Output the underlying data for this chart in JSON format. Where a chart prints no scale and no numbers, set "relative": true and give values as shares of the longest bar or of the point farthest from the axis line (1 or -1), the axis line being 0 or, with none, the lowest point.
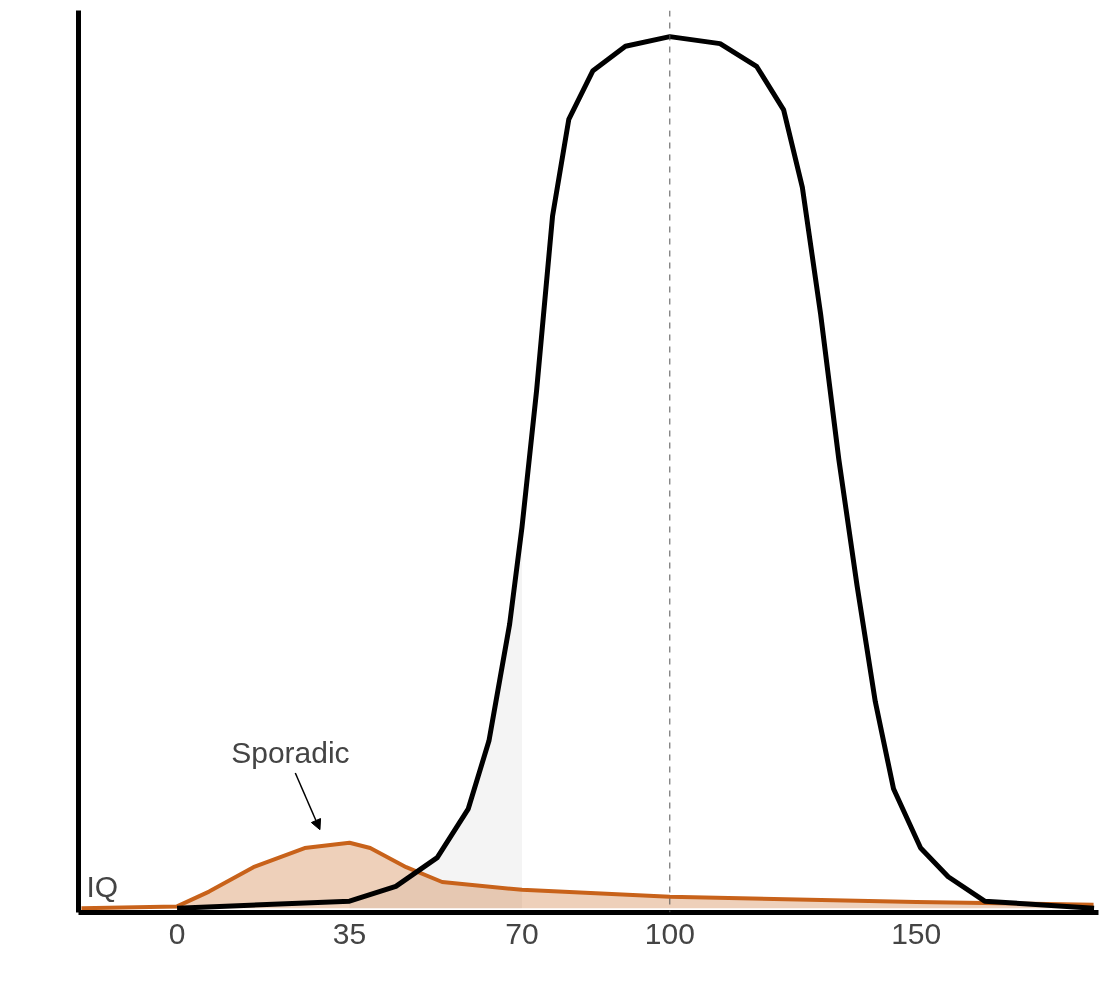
{
  "chart_data": {
    "type": "line",
    "relative": true,
    "xlabel": "IQ",
    "xlim": [
      -20,
      187
    ],
    "xticks": [
      0,
      35,
      70,
      100,
      150
    ],
    "grid": false,
    "marker": "none",
    "line_style": "solid",
    "series": [
      {
        "type": "area",
        "color": "#d9d9d9",
        "x": [
          35,
          44.4,
          52.8,
          59.1,
          63.3,
          67.5,
          70
        ],
        "values": [
          0.008,
          0.025,
          0.058,
          0.114,
          0.192,
          0.326,
          0.437
        ]
      },
      {
        "color": "#000000",
        "x": [
          0,
          35,
          44.4,
          52.8,
          59.1,
          63.3,
          67.5,
          70,
          72.95,
          76.2,
          79.5,
          84.4,
          91.0,
          100,
          110.2,
          117.6,
          123.1,
          126.9,
          130.6,
          134.3,
          138.0,
          141.7,
          145.4,
          150.9,
          156.5,
          163.9,
          186.1
        ],
        "values": [
          0,
          0.008,
          0.025,
          0.058,
          0.114,
          0.192,
          0.326,
          0.437,
          0.593,
          0.794,
          0.905,
          0.961,
          0.989,
          1,
          0.992,
          0.966,
          0.916,
          0.827,
          0.682,
          0.515,
          0.37,
          0.237,
          0.137,
          0.069,
          0.036,
          0.008,
          0
        ]
      },
      {
        "type": "area",
        "color": "#c8621a",
        "x": [
          -19.4,
          0,
          6.5,
          15.5,
          25.9,
          35,
          39.2,
          46.5,
          53.8,
          70,
          100,
          150,
          186
        ],
        "values": [
          0,
          0.002,
          0.019,
          0.047,
          0.069,
          0.075,
          0.069,
          0.047,
          0.03,
          0.021,
          0.013,
          0.007,
          0.004
        ]
      }
    ],
    "ref_lines": [
      {
        "axis": "x",
        "value": 100,
        "color": "#555555",
        "line_style": "dashed"
      }
    ],
    "annotations": [
      "Sporadic"
    ]
  }
}
